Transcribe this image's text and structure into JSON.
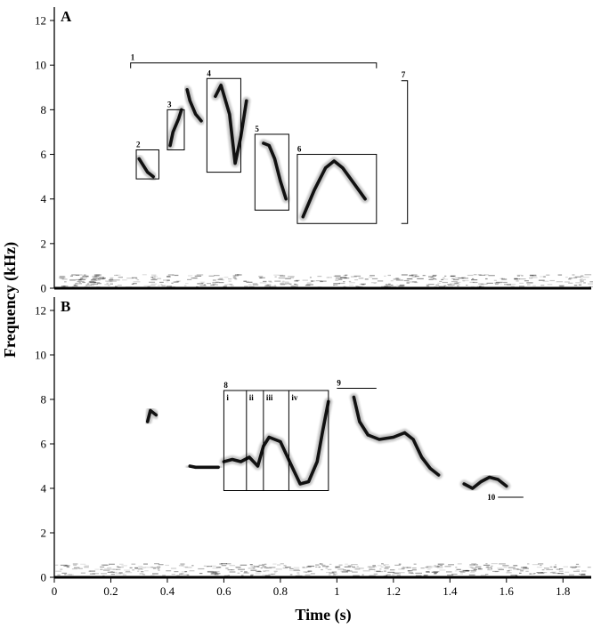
{
  "chart_data": [
    {
      "type": "spectrogram",
      "panel_label": "A",
      "ylabel": "Frequency (kHz)",
      "xlabel": "Time (s)",
      "ylim": [
        0,
        12.6
      ],
      "y_ticks": [
        0,
        2,
        4,
        6,
        8,
        10,
        12
      ],
      "xlim": [
        0,
        1.9
      ],
      "syllables": [
        {
          "x": [
            0.3,
            0.31,
            0.33,
            0.35
          ],
          "y": [
            5.8,
            5.6,
            5.2,
            5.0
          ]
        },
        {
          "x": [
            0.41,
            0.42,
            0.44,
            0.45
          ],
          "y": [
            6.4,
            7.0,
            7.6,
            8.0
          ]
        },
        {
          "x": [
            0.47,
            0.48,
            0.5,
            0.52
          ],
          "y": [
            8.9,
            8.4,
            7.8,
            7.5
          ]
        },
        {
          "x": [
            0.57,
            0.59,
            0.62,
            0.64,
            0.66,
            0.68
          ],
          "y": [
            8.6,
            9.1,
            7.8,
            5.6,
            6.8,
            8.4
          ]
        },
        {
          "x": [
            0.74,
            0.76,
            0.78,
            0.8,
            0.82
          ],
          "y": [
            6.5,
            6.4,
            5.8,
            4.8,
            4.0
          ]
        },
        {
          "x": [
            0.88,
            0.92,
            0.96,
            0.99,
            1.02,
            1.06,
            1.1
          ],
          "y": [
            3.2,
            4.4,
            5.4,
            5.7,
            5.4,
            4.7,
            4.0
          ]
        }
      ],
      "annotations": [
        {
          "label": "1",
          "kind": "bracket",
          "x": [
            0.27,
            1.14
          ],
          "y": 10.1
        },
        {
          "label": "2",
          "kind": "box",
          "x": [
            0.29,
            0.37
          ],
          "y": [
            4.9,
            6.2
          ]
        },
        {
          "label": "3",
          "kind": "box",
          "x": [
            0.4,
            0.46
          ],
          "y": [
            6.2,
            8.0
          ]
        },
        {
          "label": "4",
          "kind": "box",
          "x": [
            0.54,
            0.66
          ],
          "y": [
            5.2,
            9.4
          ]
        },
        {
          "label": "5",
          "kind": "box",
          "x": [
            0.71,
            0.83
          ],
          "y": [
            3.5,
            6.9
          ]
        },
        {
          "label": "6",
          "kind": "box",
          "x": [
            0.86,
            1.14
          ],
          "y": [
            2.9,
            6.0
          ]
        },
        {
          "label": "7",
          "kind": "bracket-vertical",
          "x": 1.25,
          "y": [
            2.9,
            9.3
          ]
        }
      ]
    },
    {
      "type": "spectrogram",
      "panel_label": "B",
      "ylabel": "Frequency (kHz)",
      "xlabel": "Time (s)",
      "ylim": [
        0,
        12.6
      ],
      "y_ticks": [
        0,
        2,
        4,
        6,
        8,
        10,
        12
      ],
      "xlim": [
        0,
        1.9
      ],
      "x_ticks": [
        0,
        0.2,
        0.4,
        0.6,
        0.8,
        1,
        1.2,
        1.4,
        1.6,
        1.8
      ],
      "syllables": [
        {
          "x": [
            0.33,
            0.34,
            0.36
          ],
          "y": [
            7.0,
            7.5,
            7.3
          ]
        },
        {
          "x": [
            0.48,
            0.5,
            0.54,
            0.58
          ],
          "y": [
            5.0,
            4.95,
            4.95,
            4.95
          ]
        },
        {
          "x": [
            0.6,
            0.63,
            0.66,
            0.69,
            0.72,
            0.74,
            0.76,
            0.8,
            0.84,
            0.87,
            0.9,
            0.93,
            0.95,
            0.97
          ],
          "y": [
            5.2,
            5.3,
            5.2,
            5.4,
            5.0,
            5.9,
            6.3,
            6.1,
            5.0,
            4.2,
            4.3,
            5.2,
            6.6,
            7.9
          ]
        },
        {
          "x": [
            1.06,
            1.08,
            1.11,
            1.15,
            1.2,
            1.24,
            1.27,
            1.3,
            1.33,
            1.36
          ],
          "y": [
            8.1,
            7.0,
            6.4,
            6.2,
            6.3,
            6.5,
            6.2,
            5.4,
            4.9,
            4.6
          ]
        },
        {
          "x": [
            1.45,
            1.48,
            1.51,
            1.54,
            1.57,
            1.6
          ],
          "y": [
            4.2,
            4.0,
            4.3,
            4.5,
            4.4,
            4.1
          ]
        }
      ],
      "annotations": [
        {
          "label": "8",
          "kind": "multibox",
          "x": [
            0.6,
            0.97
          ],
          "y": [
            3.9,
            8.4
          ],
          "dividers": [
            0.68,
            0.74,
            0.83
          ],
          "segments": [
            "i",
            "ii",
            "iii",
            "iv"
          ]
        },
        {
          "label": "9",
          "kind": "line",
          "x": [
            1.0,
            1.14
          ],
          "y": 8.5
        },
        {
          "label": "10",
          "kind": "line",
          "x": [
            1.57,
            1.66
          ],
          "y": 3.6
        }
      ]
    }
  ]
}
